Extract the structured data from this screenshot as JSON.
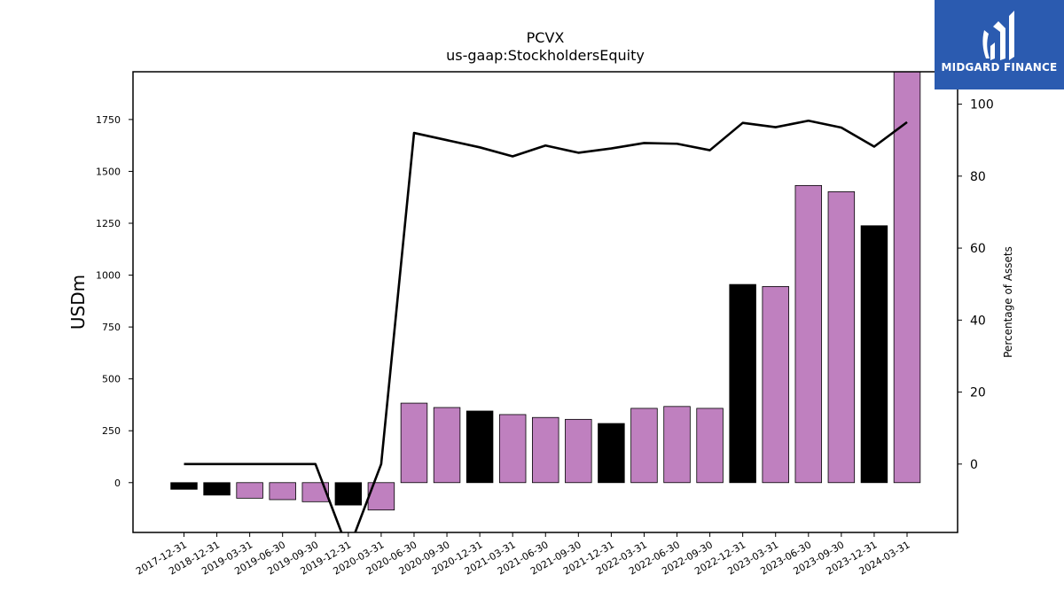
{
  "logo": {
    "text": "MIDGARD FINANCE"
  },
  "chart_data": {
    "type": "bar",
    "title": "PCVX",
    "subtitle": "us-gaap:StockholdersEquity",
    "ylabel": "USDm",
    "y2label": "Percentage of Assets",
    "ylim": [
      -240,
      1980
    ],
    "y2lim": [
      -19,
      109
    ],
    "yticks": [
      0,
      250,
      500,
      750,
      1000,
      1250,
      1500,
      1750
    ],
    "y2ticks": [
      0,
      20,
      40,
      60,
      80,
      100
    ],
    "categories": [
      "2017-12-31",
      "2018-12-31",
      "2019-03-31",
      "2019-06-30",
      "2019-09-30",
      "2019-12-31",
      "2020-03-31",
      "2020-06-30",
      "2020-09-30",
      "2020-12-31",
      "2021-03-31",
      "2021-06-30",
      "2021-09-30",
      "2021-12-31",
      "2022-03-31",
      "2022-06-30",
      "2022-09-30",
      "2022-12-31",
      "2023-03-31",
      "2023-06-30",
      "2023-09-30",
      "2023-12-31",
      "2024-03-31"
    ],
    "series": [
      {
        "type": "bar",
        "values": [
          -32,
          -60,
          -75,
          -82,
          -92,
          -108,
          -132,
          383,
          362,
          345,
          328,
          314,
          305,
          285,
          358,
          367,
          358,
          955,
          945,
          1432,
          1402,
          1238,
          2000
        ],
        "colors": [
          "#000000",
          "#000000",
          "#bf80bf",
          "#bf80bf",
          "#bf80bf",
          "#000000",
          "#bf80bf",
          "#bf80bf",
          "#bf80bf",
          "#000000",
          "#bf80bf",
          "#bf80bf",
          "#bf80bf",
          "#000000",
          "#bf80bf",
          "#bf80bf",
          "#bf80bf",
          "#000000",
          "#bf80bf",
          "#bf80bf",
          "#bf80bf",
          "#000000",
          "#bf80bf"
        ]
      },
      {
        "type": "line",
        "axis": "right",
        "values": [
          0,
          0,
          0,
          0,
          0,
          -24,
          0,
          92,
          90,
          88,
          85.5,
          88.5,
          86.5,
          87.7,
          89.2,
          89.0,
          87.2,
          94.8,
          93.6,
          95.4,
          93.5,
          88.2,
          95.0
        ]
      }
    ],
    "grid": false
  }
}
